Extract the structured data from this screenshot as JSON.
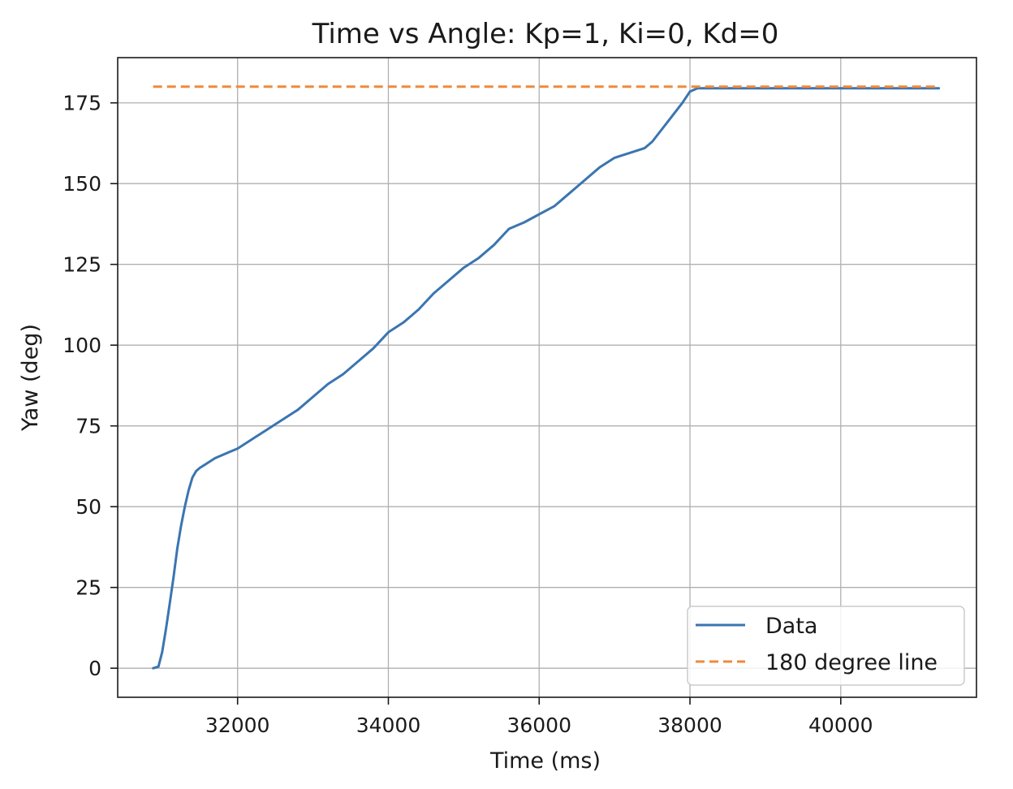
{
  "chart_data": {
    "type": "line",
    "title": "Time vs Angle: Kp=1, Ki=0, Kd=0",
    "xlabel": "Time (ms)",
    "ylabel": "Yaw (deg)",
    "xlim": [
      30410,
      41800
    ],
    "ylim": [
      -9,
      189
    ],
    "xticks": [
      32000,
      34000,
      36000,
      38000,
      40000
    ],
    "xtick_labels": [
      "32000",
      "34000",
      "36000",
      "38000",
      "40000"
    ],
    "yticks": [
      0,
      25,
      50,
      75,
      100,
      125,
      150,
      175
    ],
    "ytick_labels": [
      "0",
      "25",
      "50",
      "75",
      "100",
      "125",
      "150",
      "175"
    ],
    "grid": true,
    "legend_position": "bottom-right",
    "series": [
      {
        "name": "Data",
        "color": "#3a75b0",
        "style": "solid",
        "x": [
          30880,
          30950,
          31000,
          31050,
          31100,
          31150,
          31200,
          31250,
          31300,
          31350,
          31400,
          31450,
          31500,
          31600,
          31700,
          31800,
          31900,
          32000,
          32200,
          32400,
          32600,
          32800,
          33000,
          33200,
          33400,
          33600,
          33800,
          34000,
          34200,
          34400,
          34600,
          34800,
          35000,
          35200,
          35400,
          35600,
          35800,
          36000,
          36200,
          36400,
          36600,
          36800,
          37000,
          37200,
          37400,
          37500,
          37600,
          37700,
          37800,
          37900,
          38000,
          38100,
          38500,
          39000,
          39500,
          40000,
          40500,
          41000,
          41300
        ],
        "y": [
          0,
          0.5,
          5,
          12,
          20,
          28,
          37,
          44,
          50,
          55,
          59,
          61,
          62,
          63.5,
          65,
          66,
          67,
          68,
          71,
          74,
          77,
          80,
          84,
          88,
          91,
          95,
          99,
          104,
          107,
          111,
          116,
          120,
          124,
          127,
          131,
          136,
          138,
          140.5,
          143,
          147,
          151,
          155,
          158,
          159.5,
          161,
          163,
          166,
          169,
          172,
          175,
          178.5,
          179.5,
          179.5,
          179.5,
          179.5,
          179.5,
          179.5,
          179.5,
          179.5
        ]
      },
      {
        "name": "180 degree line",
        "color": "#f0893a",
        "style": "dashed",
        "x": [
          30880,
          41300
        ],
        "y": [
          180,
          180
        ]
      }
    ]
  }
}
